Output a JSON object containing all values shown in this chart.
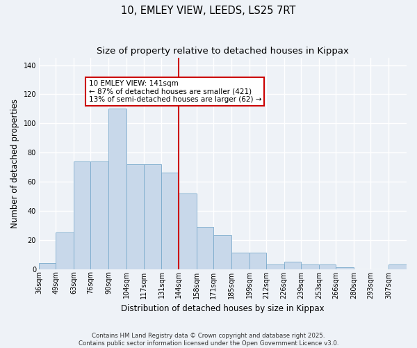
{
  "title": "10, EMLEY VIEW, LEEDS, LS25 7RT",
  "subtitle": "Size of property relative to detached houses in Kippax",
  "xlabel": "Distribution of detached houses by size in Kippax",
  "ylabel": "Number of detached properties",
  "bin_labels": [
    36,
    49,
    63,
    76,
    90,
    104,
    117,
    131,
    144,
    158,
    171,
    185,
    199,
    212,
    226,
    239,
    253,
    266,
    280,
    293,
    307
  ],
  "bar_heights": [
    4,
    25,
    74,
    74,
    110,
    72,
    72,
    66,
    52,
    29,
    23,
    11,
    11,
    3,
    5,
    3,
    3,
    1,
    0,
    0,
    3
  ],
  "bar_color": "#c8d8ea",
  "bar_edgecolor": "#7aaacc",
  "vline_x": 144,
  "vline_color": "#cc0000",
  "annotation_line0": "10 EMLEY VIEW: 141sqm",
  "annotation_line1": "← 87% of detached houses are smaller (421)",
  "annotation_line2": "13% of semi-detached houses are larger (62) →",
  "annotation_box_edgecolor": "#cc0000",
  "annotation_box_facecolor": "#ffffff",
  "ylim": [
    0,
    145
  ],
  "yticks": [
    0,
    20,
    40,
    60,
    80,
    100,
    120,
    140
  ],
  "background_color": "#eef2f7",
  "grid_color": "#ffffff",
  "copyright_text": "Contains HM Land Registry data © Crown copyright and database right 2025.\nContains public sector information licensed under the Open Government Licence v3.0.",
  "title_fontsize": 10.5,
  "subtitle_fontsize": 9.5,
  "axis_label_fontsize": 8.5,
  "tick_fontsize": 7,
  "annot_fontsize": 7.5
}
